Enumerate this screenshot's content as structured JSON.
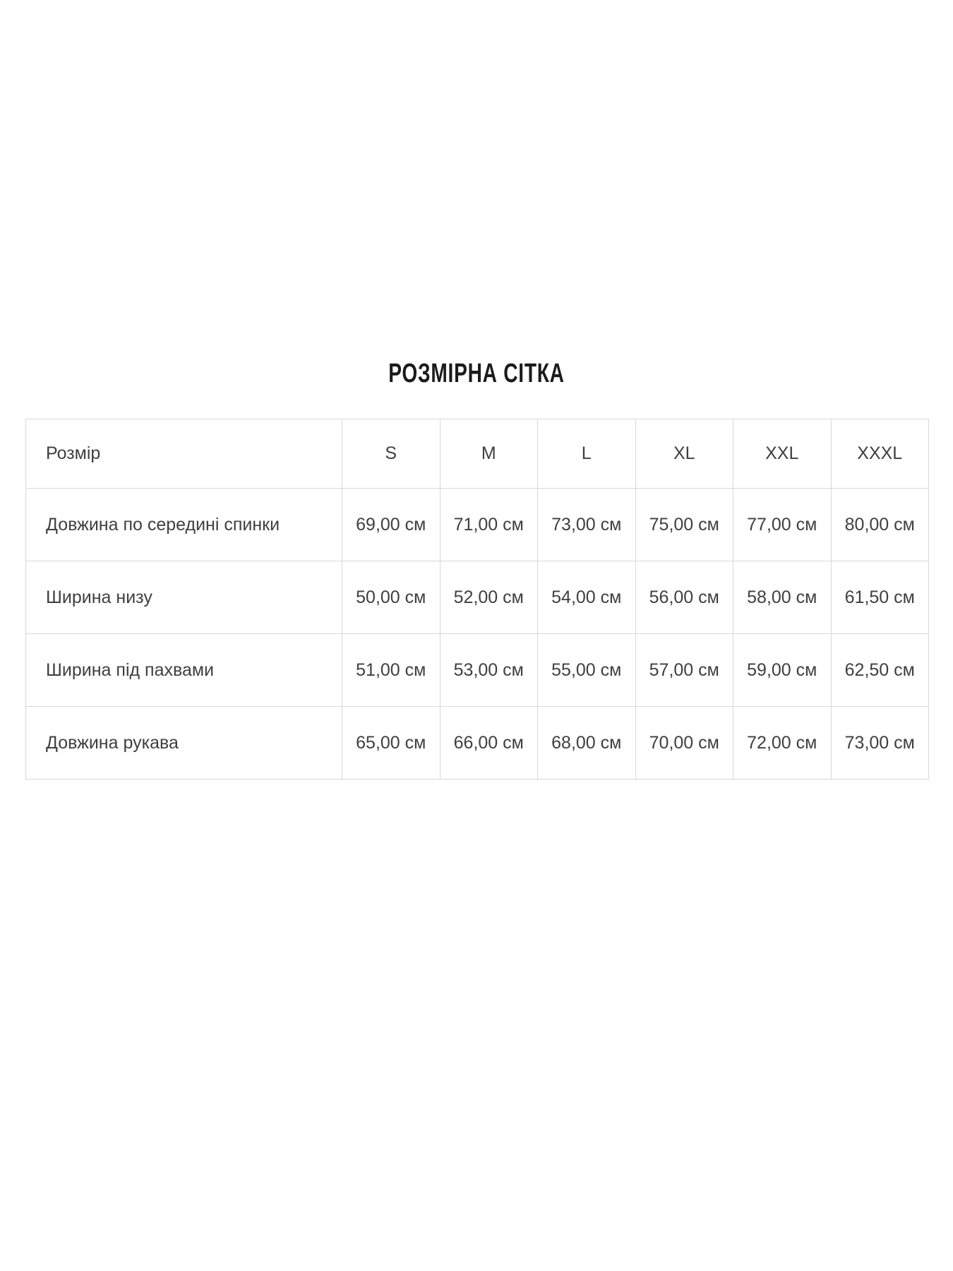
{
  "page": {
    "title": "РОЗМІРНА СІТКА"
  },
  "colors": {
    "background": "#ffffff",
    "table_border": "#d8d8d8",
    "table_text": "#3f3f3f",
    "title_text": "#1b1b1b"
  },
  "table": {
    "header": [
      "Розмір",
      "S",
      "M",
      "L",
      "XL",
      "XXL",
      "XXXL"
    ],
    "rows": [
      {
        "label": "Довжина по середині спинки",
        "values": [
          "69,00 см",
          "71,00 см",
          "73,00 см",
          "75,00 см",
          "77,00 см",
          "80,00 см"
        ]
      },
      {
        "label": "Ширина низу",
        "values": [
          "50,00 см",
          "52,00 см",
          "54,00 см",
          "56,00 см",
          "58,00 см",
          "61,50 см"
        ]
      },
      {
        "label": "Ширина під пахвами",
        "values": [
          "51,00 см",
          "53,00 см",
          "55,00 см",
          "57,00 см",
          "59,00 см",
          "62,50 см"
        ]
      },
      {
        "label": "Довжина рукава",
        "values": [
          "65,00 см",
          "66,00 см",
          "68,00 см",
          "70,00 см",
          "72,00 см",
          "73,00 см"
        ]
      }
    ]
  }
}
